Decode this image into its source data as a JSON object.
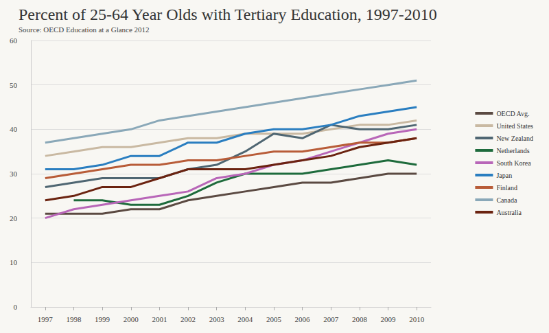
{
  "chart_data": {
    "type": "line",
    "title": "Percent of 25-64 Year Olds with Tertiary Education, 1997-2010",
    "subtitle": "Source: OECD Education at a Glance 2012",
    "categories": [
      "1997",
      "1998",
      "1999",
      "2000",
      "2001",
      "2002",
      "2003",
      "2004",
      "2005",
      "2006",
      "2007",
      "2008",
      "2009",
      "2010"
    ],
    "series": [
      {
        "name": "OECD Avg.",
        "color": "#5b4a42",
        "values": [
          21,
          21,
          21,
          22,
          22,
          24,
          25,
          26,
          27,
          28,
          28,
          29,
          30,
          30
        ]
      },
      {
        "name": "United States",
        "color": "#c9b9a2",
        "values": [
          34,
          35,
          36,
          36,
          37,
          38,
          38,
          39,
          39,
          39,
          40,
          41,
          41,
          42
        ]
      },
      {
        "name": "New Zealand",
        "color": "#4f6672",
        "values": [
          27,
          28,
          29,
          29,
          29,
          31,
          32,
          35,
          39,
          38,
          41,
          40,
          40,
          41
        ]
      },
      {
        "name": "Netherlands",
        "color": "#1e6b3c",
        "values": [
          null,
          24,
          24,
          23,
          23,
          25,
          28,
          30,
          30,
          30,
          31,
          32,
          33,
          32
        ]
      },
      {
        "name": "South Korea",
        "color": "#b866b8",
        "values": [
          20,
          22,
          23,
          24,
          25,
          26,
          29,
          30,
          32,
          33,
          35,
          37,
          39,
          40
        ]
      },
      {
        "name": "Japan",
        "color": "#2a7ec0",
        "values": [
          31,
          31,
          32,
          34,
          34,
          37,
          37,
          39,
          40,
          40,
          41,
          43,
          44,
          45
        ]
      },
      {
        "name": "Finland",
        "color": "#b85c38",
        "values": [
          29,
          30,
          31,
          32,
          32,
          33,
          33,
          34,
          35,
          35,
          36,
          37,
          37,
          38
        ]
      },
      {
        "name": "Canada",
        "color": "#8aa8b8",
        "values": [
          37,
          38,
          39,
          40,
          42,
          43,
          44,
          45,
          46,
          47,
          48,
          49,
          50,
          51
        ]
      },
      {
        "name": "Australia",
        "color": "#6b2310",
        "values": [
          24,
          25,
          27,
          27,
          29,
          31,
          31,
          31,
          32,
          33,
          34,
          36,
          37,
          38
        ]
      }
    ],
    "ylim": [
      0,
      60
    ],
    "yticks": [
      0,
      10,
      20,
      30,
      40,
      50,
      60
    ],
    "grid": true,
    "legend": "right"
  }
}
